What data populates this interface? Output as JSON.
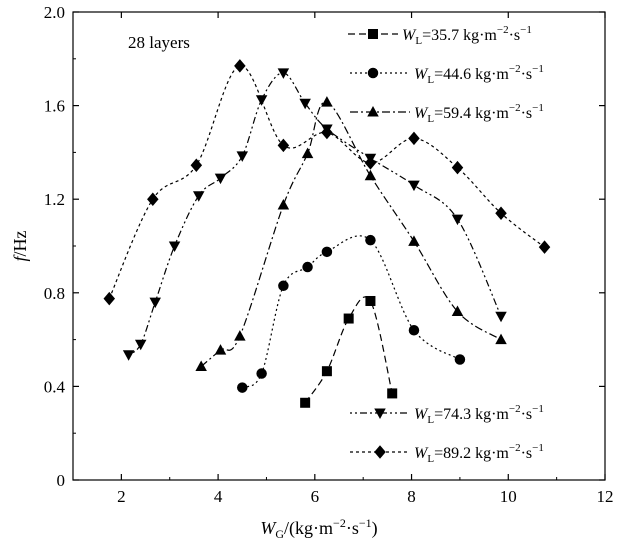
{
  "chart_data": {
    "type": "line",
    "annotation": "28 layers",
    "xlabel": {
      "main": "W",
      "sub": "G",
      "rest": "/(kg·m",
      "sup1": "−2",
      "mid": "·s",
      "sup2": "−1",
      "end": ")"
    },
    "ylabel": {
      "italic": "f",
      "rest": "/Hz"
    },
    "xlim": [
      1,
      12
    ],
    "ylim": [
      0,
      2.0
    ],
    "xticks": [
      2,
      4,
      6,
      8,
      10,
      12
    ],
    "yticks": [
      0,
      0.4,
      0.8,
      1.2,
      1.6,
      2.0
    ],
    "xtick_labels": [
      "2",
      "4",
      "6",
      "8",
      "10",
      "12"
    ],
    "ytick_labels": [
      "0",
      "0.4",
      "0.8",
      "1.2",
      "1.6",
      "2.0"
    ],
    "grid": false,
    "series": [
      {
        "name": "W_L=35.7 kg·m^-2·s^-1",
        "marker": "square",
        "dash": "7,4",
        "legend": {
          "pre": "W",
          "sub": "L",
          "val": "=35.7 kg·m",
          "sup1": "−2",
          "mid": "·s",
          "sup2": "−1"
        },
        "points": [
          [
            5.8,
            0.33
          ],
          [
            6.25,
            0.465
          ],
          [
            6.7,
            0.69
          ],
          [
            7.15,
            0.765
          ],
          [
            7.6,
            0.37
          ]
        ]
      },
      {
        "name": "W_L=44.6 kg·m^-2·s^-1",
        "marker": "circle",
        "dash": "2,3",
        "legend": {
          "pre": "W",
          "sub": "L",
          "val": "=44.6 kg·m",
          "sup1": "−2",
          "mid": "·s",
          "sup2": "−1"
        },
        "points": [
          [
            4.5,
            0.395
          ],
          [
            4.9,
            0.455
          ],
          [
            5.35,
            0.83
          ],
          [
            5.85,
            0.91
          ],
          [
            6.25,
            0.975
          ],
          [
            7.15,
            1.025
          ],
          [
            8.05,
            0.64
          ],
          [
            9.0,
            0.515
          ]
        ]
      },
      {
        "name": "W_L=59.4 kg·m^-2·s^-1",
        "marker": "triangle-up",
        "dash": "8,3,2,3",
        "legend": {
          "pre": "W",
          "sub": "L",
          "val": "=59.4 kg·m",
          "sup1": "−2",
          "mid": "·s",
          "sup2": "−1"
        },
        "points": [
          [
            3.65,
            0.485
          ],
          [
            4.05,
            0.555
          ],
          [
            4.45,
            0.615
          ],
          [
            5.35,
            1.175
          ],
          [
            5.85,
            1.395
          ],
          [
            6.25,
            1.615
          ],
          [
            7.15,
            1.3
          ],
          [
            8.05,
            1.02
          ],
          [
            8.95,
            0.72
          ],
          [
            9.85,
            0.6
          ]
        ]
      },
      {
        "name": "W_L=74.3 kg·m^-2·s^-1",
        "marker": "triangle-down",
        "dash": "2,3,2,3,7,3",
        "legend": {
          "pre": "W",
          "sub": "L",
          "val": "=74.3 kg·m",
          "sup1": "−2",
          "mid": "·s",
          "sup2": "−1"
        },
        "points": [
          [
            2.15,
            0.535
          ],
          [
            2.4,
            0.58
          ],
          [
            2.7,
            0.76
          ],
          [
            3.1,
            1.0
          ],
          [
            3.6,
            1.215
          ],
          [
            4.05,
            1.29
          ],
          [
            4.5,
            1.385
          ],
          [
            4.9,
            1.625
          ],
          [
            5.35,
            1.74
          ],
          [
            5.8,
            1.61
          ],
          [
            6.25,
            1.5
          ],
          [
            7.15,
            1.375
          ],
          [
            8.05,
            1.26
          ],
          [
            8.95,
            1.115
          ],
          [
            9.85,
            0.7
          ]
        ]
      },
      {
        "name": "W_L=89.2 kg·m^-2·s^-1",
        "marker": "diamond",
        "dash": "3,3",
        "legend": {
          "pre": "W",
          "sub": "L",
          "val": "=89.2 kg·m",
          "sup1": "−2",
          "mid": "·s",
          "sup2": "−1"
        },
        "points": [
          [
            1.75,
            0.775
          ],
          [
            2.65,
            1.2
          ],
          [
            3.55,
            1.345
          ],
          [
            4.45,
            1.77
          ],
          [
            5.35,
            1.43
          ],
          [
            6.25,
            1.485
          ],
          [
            7.15,
            1.355
          ],
          [
            8.05,
            1.46
          ],
          [
            8.95,
            1.335
          ],
          [
            9.85,
            1.14
          ],
          [
            10.75,
            0.995
          ]
        ]
      }
    ]
  }
}
